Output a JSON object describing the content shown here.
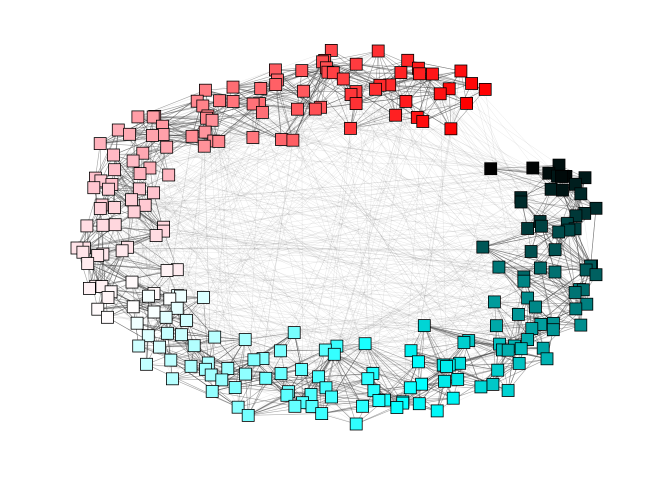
{
  "graph": {
    "edge_color": "#555555",
    "node_border": "#000000",
    "gradient": {
      "red": "#ff0000",
      "pink": "#ffc0cb",
      "white": "#ffffff",
      "cyan": "#00ffff",
      "teal": "#008080",
      "black": "#000000"
    },
    "node_count": 260
  }
}
